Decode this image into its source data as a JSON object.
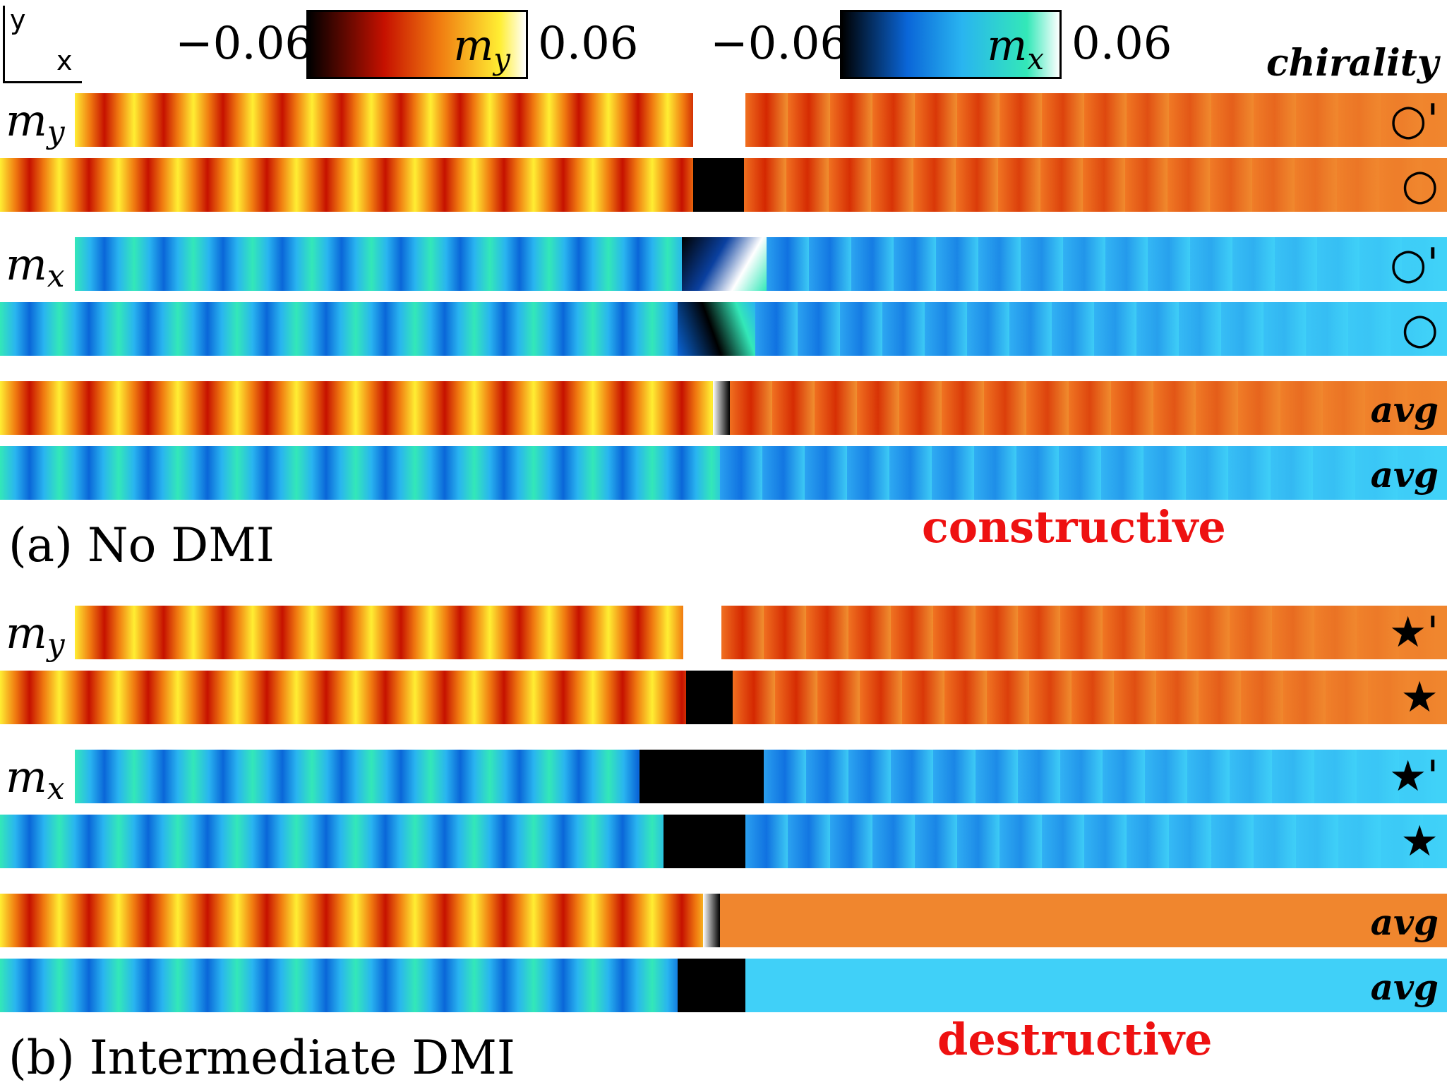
{
  "axes": {
    "y_label": "y",
    "x_label": "x"
  },
  "colorbars": [
    {
      "name": "my",
      "label": "m",
      "sub": "y",
      "min": "−0.06",
      "max": "0.06",
      "stops": [
        "#000000",
        "#c61100",
        "#f07a10",
        "#ffee33",
        "#ffffff"
      ]
    },
    {
      "name": "mx",
      "label": "m",
      "sub": "x",
      "min": "−0.06",
      "max": "0.06",
      "stops": [
        "#000000",
        "#0a66d8",
        "#29b4f0",
        "#33e8b8",
        "#ffffff"
      ]
    }
  ],
  "chirality_header": "chirality",
  "panels": [
    {
      "id": "a",
      "caption": "(a) No DMI",
      "verdict": "constructive",
      "row_labels": [
        {
          "main": "m",
          "sub": "y"
        },
        {
          "main": "m",
          "sub": "x"
        }
      ],
      "rows": [
        {
          "field": "my",
          "chirality": "○'"
        },
        {
          "field": "my",
          "chirality": "○"
        },
        {
          "field": "mx",
          "chirality": "○'"
        },
        {
          "field": "mx",
          "chirality": "○"
        },
        {
          "field": "my",
          "chirality": "avg"
        },
        {
          "field": "mx",
          "chirality": "avg"
        }
      ]
    },
    {
      "id": "b",
      "caption": "(b) Intermediate DMI",
      "verdict": "destructive",
      "row_labels": [
        {
          "main": "m",
          "sub": "y"
        },
        {
          "main": "m",
          "sub": "x"
        }
      ],
      "rows": [
        {
          "field": "my",
          "chirality": "★'"
        },
        {
          "field": "my",
          "chirality": "★"
        },
        {
          "field": "mx",
          "chirality": "★'"
        },
        {
          "field": "mx",
          "chirality": "★"
        },
        {
          "field": "my",
          "chirality": "avg"
        },
        {
          "field": "mx",
          "chirality": "avg"
        }
      ]
    }
  ]
}
